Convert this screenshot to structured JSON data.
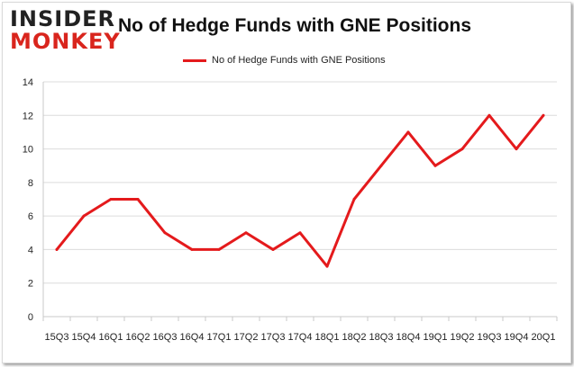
{
  "logo": {
    "top": "INSIDER",
    "bottom": "MONKEY"
  },
  "chart_data": {
    "type": "line",
    "title": "No of Hedge Funds with GNE Positions",
    "xlabel": "",
    "ylabel": "",
    "categories": [
      "15Q3",
      "15Q4",
      "16Q1",
      "16Q2",
      "16Q3",
      "16Q4",
      "17Q1",
      "17Q2",
      "17Q3",
      "17Q4",
      "18Q1",
      "18Q2",
      "18Q3",
      "18Q4",
      "19Q1",
      "19Q2",
      "19Q3",
      "19Q4",
      "20Q1"
    ],
    "series": [
      {
        "name": "No of Hedge Funds with GNE  Positions",
        "values": [
          4,
          6,
          7,
          7,
          5,
          4,
          4,
          5,
          4,
          5,
          3,
          7,
          9,
          11,
          9,
          10,
          12,
          10,
          12
        ],
        "color": "#e41a1c"
      }
    ],
    "ylim": [
      0,
      14
    ],
    "yticks": [
      0,
      2,
      4,
      6,
      8,
      10,
      12,
      14
    ],
    "grid": true,
    "legend": "top-center"
  }
}
